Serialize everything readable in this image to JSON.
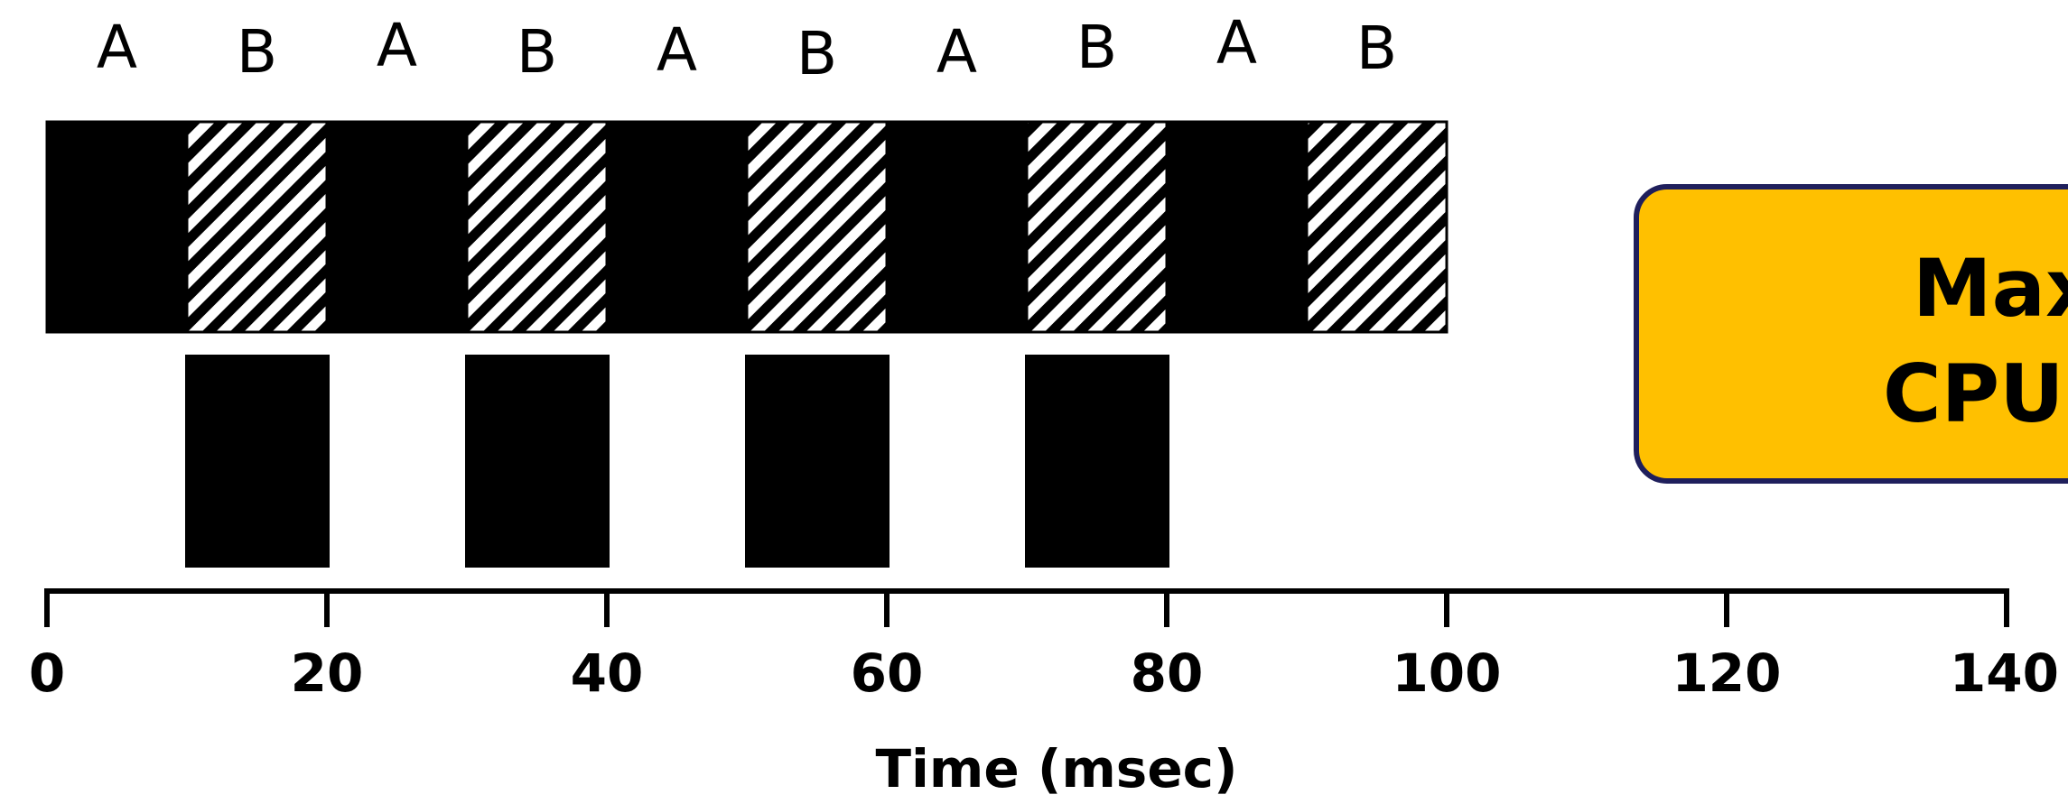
{
  "diagram": {
    "sequence": [
      "A",
      "B",
      "A",
      "B",
      "A",
      "B",
      "A",
      "B",
      "A",
      "B"
    ],
    "cpu_row": [
      {
        "label": "A",
        "start": 0,
        "end": 10
      },
      {
        "label": "B",
        "start": 10,
        "end": 20
      },
      {
        "label": "A",
        "start": 20,
        "end": 30
      },
      {
        "label": "B",
        "start": 30,
        "end": 40
      },
      {
        "label": "A",
        "start": 40,
        "end": 50
      },
      {
        "label": "B",
        "start": 50,
        "end": 60
      },
      {
        "label": "A",
        "start": 60,
        "end": 70
      },
      {
        "label": "B",
        "start": 70,
        "end": 80
      },
      {
        "label": "A",
        "start": 80,
        "end": 90
      },
      {
        "label": "B",
        "start": 90,
        "end": 100
      }
    ],
    "second_row": [
      {
        "start": 10,
        "end": 20
      },
      {
        "start": 30,
        "end": 40
      },
      {
        "start": 50,
        "end": 60
      },
      {
        "start": 70,
        "end": 80
      }
    ],
    "axis": {
      "min": 0,
      "max": 140,
      "ticks": [
        "0",
        "20",
        "40",
        "60",
        "80",
        "100",
        "120",
        "140"
      ],
      "title": "Time (msec)"
    },
    "callout": {
      "line1": "Max",
      "line2": "CPU"
    },
    "colors": {
      "ink": "#000000",
      "callout_fill": "#FFC000",
      "callout_border": "#1F1F5C"
    }
  }
}
